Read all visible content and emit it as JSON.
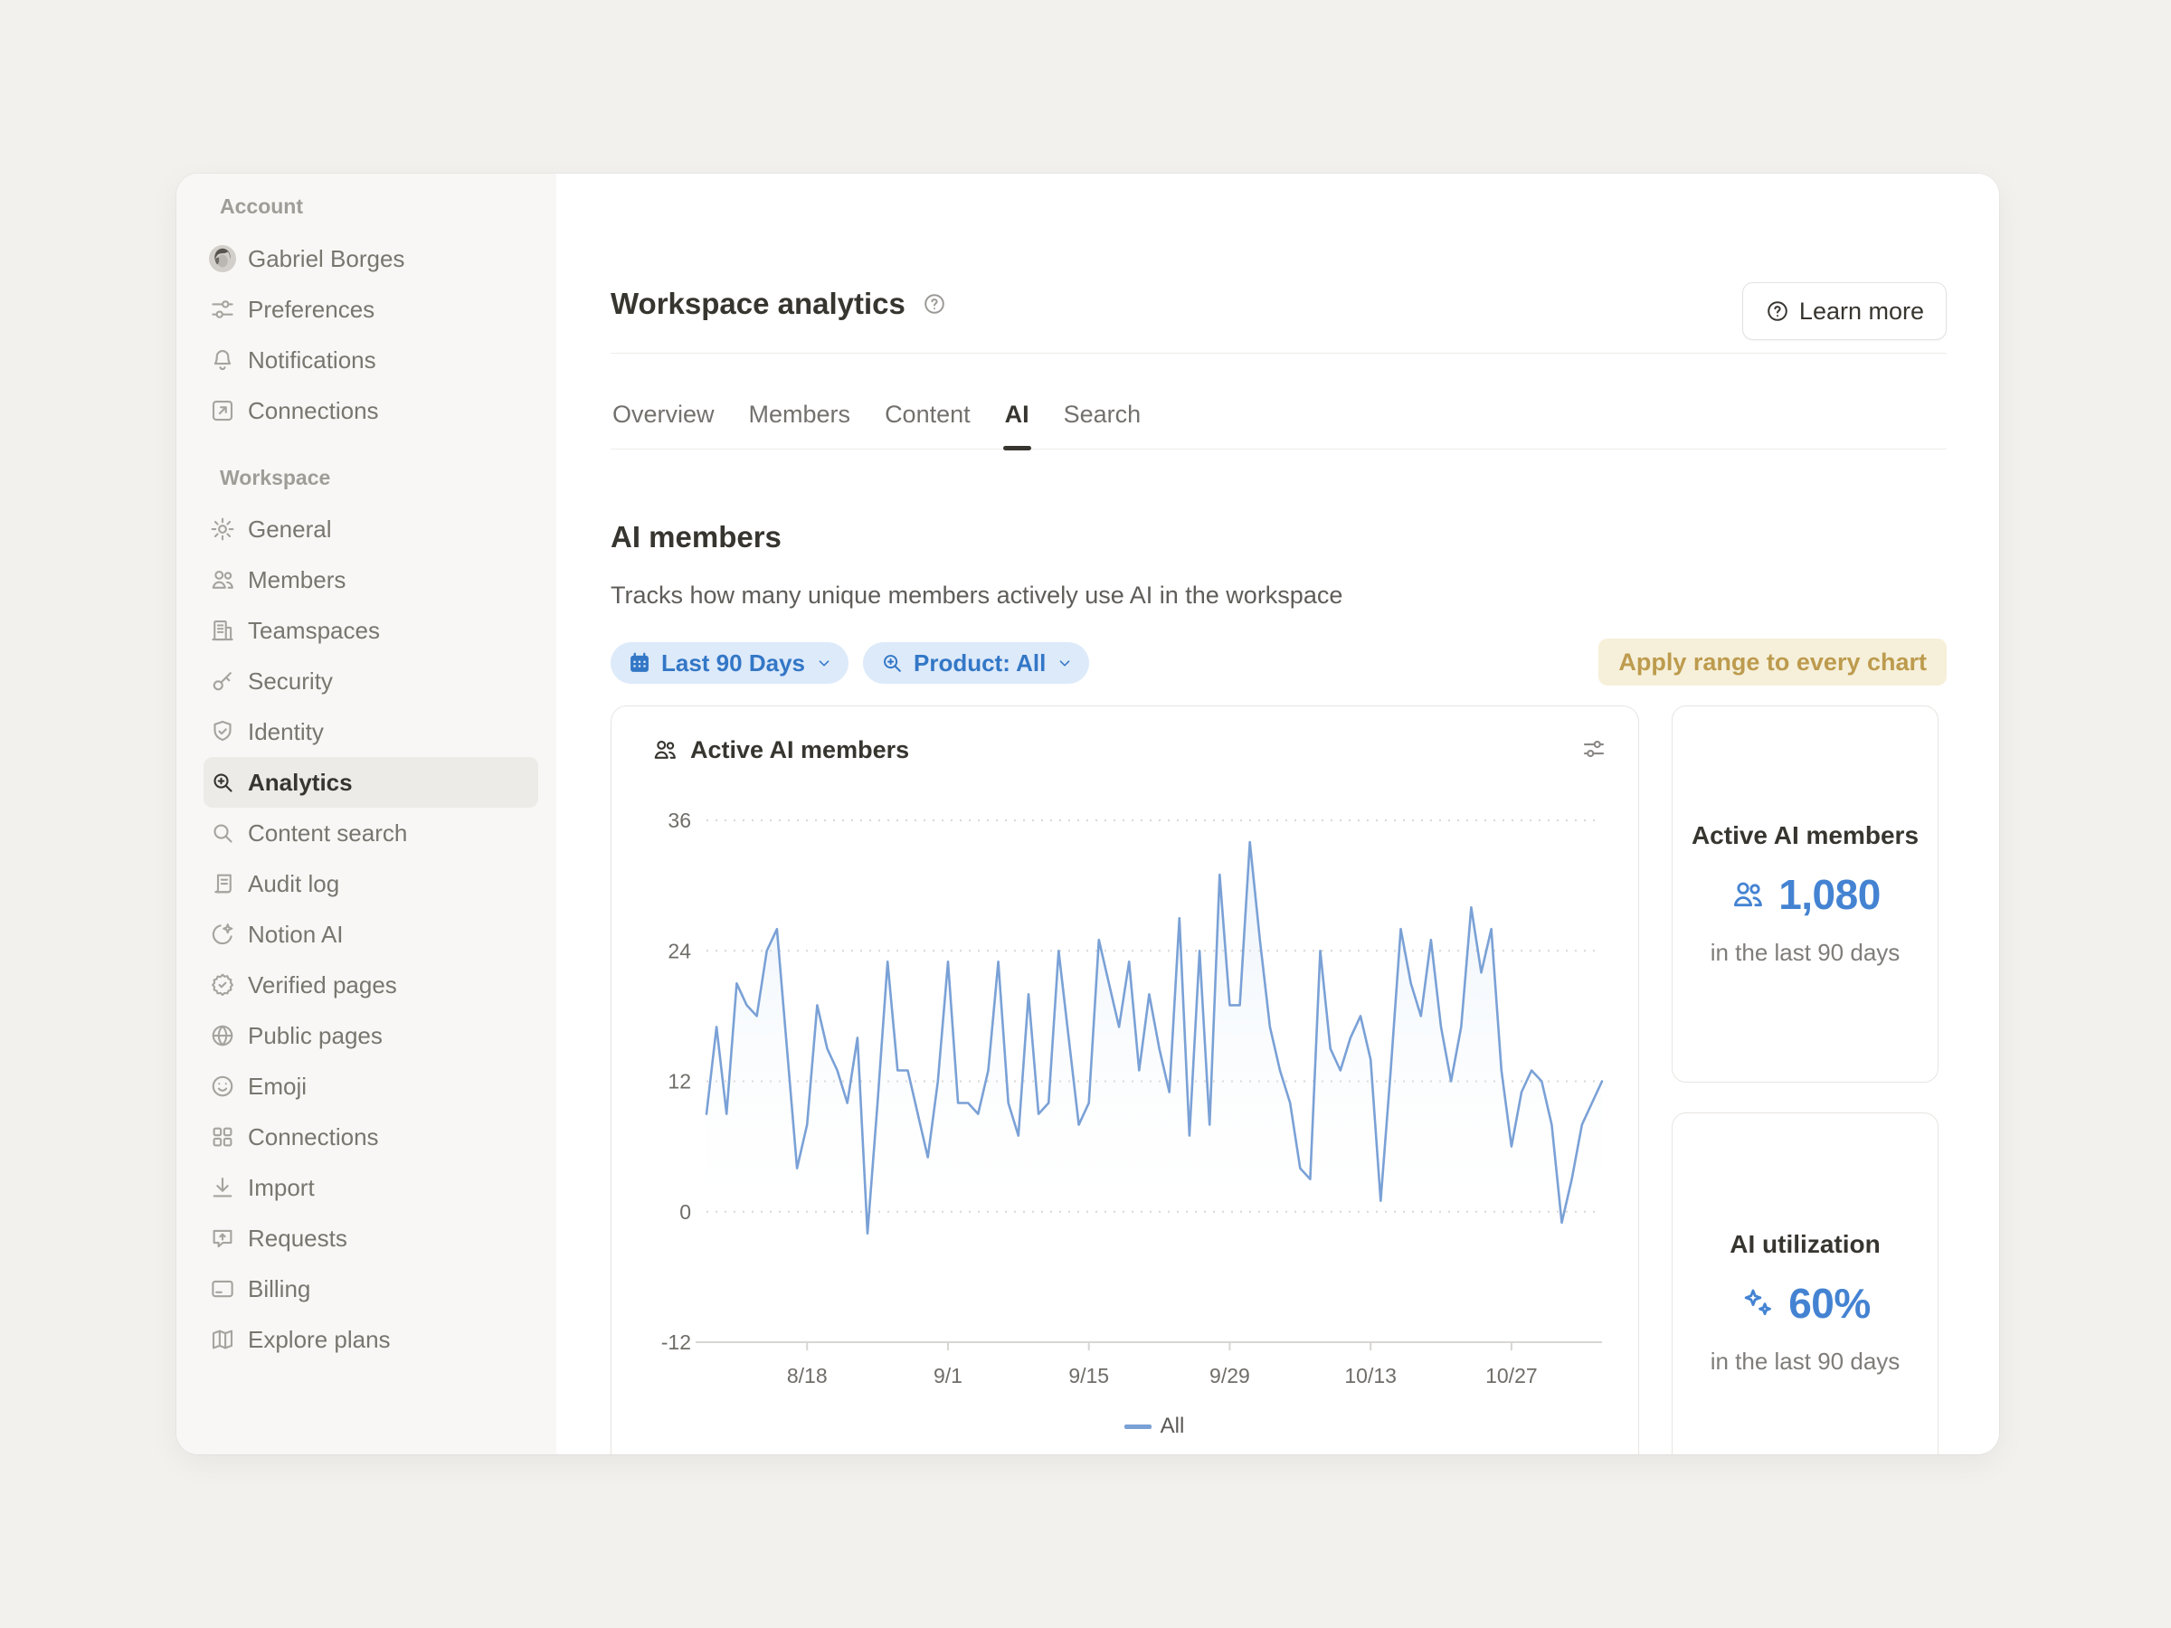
{
  "sidebar": {
    "account_section_label": "Account",
    "account_items": [
      {
        "label": "Gabriel Borges",
        "icon": "avatar"
      },
      {
        "label": "Preferences",
        "icon": "sliders-horizontal"
      },
      {
        "label": "Notifications",
        "icon": "bell"
      },
      {
        "label": "Connections",
        "icon": "arrow-up-right-box"
      }
    ],
    "workspace_section_label": "Workspace",
    "workspace_items": [
      {
        "label": "General",
        "icon": "gear"
      },
      {
        "label": "Members",
        "icon": "people"
      },
      {
        "label": "Teamspaces",
        "icon": "building"
      },
      {
        "label": "Security",
        "icon": "key"
      },
      {
        "label": "Identity",
        "icon": "shield-check"
      },
      {
        "label": "Analytics",
        "icon": "magnifier-plus",
        "active": true
      },
      {
        "label": "Content search",
        "icon": "magnifier"
      },
      {
        "label": "Audit log",
        "icon": "audit-log"
      },
      {
        "label": "Notion AI",
        "icon": "notion-ai"
      },
      {
        "label": "Verified pages",
        "icon": "verified-badge"
      },
      {
        "label": "Public pages",
        "icon": "globe"
      },
      {
        "label": "Emoji",
        "icon": "smiley"
      },
      {
        "label": "Connections",
        "icon": "grid"
      },
      {
        "label": "Import",
        "icon": "import-arrow"
      },
      {
        "label": "Requests",
        "icon": "message-up"
      },
      {
        "label": "Billing",
        "icon": "credit-card"
      },
      {
        "label": "Explore plans",
        "icon": "map"
      }
    ]
  },
  "header": {
    "title": "Workspace analytics",
    "help_icon": "question-circle",
    "learn_more": {
      "label": "Learn more",
      "icon": "question-circle"
    }
  },
  "tabs": [
    {
      "label": "Overview"
    },
    {
      "label": "Members"
    },
    {
      "label": "Content"
    },
    {
      "label": "AI",
      "active": true
    },
    {
      "label": "Search"
    }
  ],
  "ai_members_section": {
    "heading": "AI members",
    "description": "Tracks how many unique members actively use AI in the workspace"
  },
  "filters": {
    "date_range": {
      "label": "Last 90 Days",
      "icon": "calendar"
    },
    "product": {
      "label": "Product: All",
      "icon": "magnifier-plus"
    },
    "apply_button": {
      "label": "Apply range to every chart"
    }
  },
  "chart_card": {
    "title": "Active AI members",
    "title_icon": "people",
    "options_icon": "sliders"
  },
  "chart_data": {
    "type": "line",
    "title": "Active AI members",
    "x_start_date": "8/8",
    "days": 90,
    "x_tick_labels": [
      "8/18",
      "9/1",
      "9/15",
      "9/29",
      "10/13",
      "10/27"
    ],
    "x_tick_days": [
      10,
      24,
      38,
      52,
      66,
      80
    ],
    "y_ticks": [
      36,
      24,
      12,
      0,
      -12
    ],
    "ylim": [
      -12,
      36
    ],
    "grid": "dotted-horizontal",
    "legend_position": "bottom",
    "series": [
      {
        "name": "All",
        "color": "#7AA1D6",
        "values": [
          9,
          17,
          9,
          21,
          19,
          18,
          24,
          26,
          15,
          4,
          8,
          19,
          15,
          13,
          10,
          16,
          -2,
          10,
          23,
          13,
          13,
          9,
          5,
          12,
          23,
          10,
          10,
          9,
          13,
          23,
          10,
          7,
          20,
          9,
          10,
          24,
          16,
          8,
          10,
          25,
          21,
          17,
          23,
          13,
          20,
          15,
          11,
          27,
          7,
          24,
          8,
          31,
          19,
          19,
          34,
          25,
          17,
          13,
          10,
          4,
          3,
          24,
          15,
          13,
          16,
          18,
          14,
          1,
          13,
          26,
          21,
          18,
          25,
          17,
          12,
          17,
          28,
          22,
          26,
          13,
          6,
          11,
          13,
          12,
          8,
          -1,
          3,
          8,
          10,
          12
        ]
      }
    ]
  },
  "stat_cards": [
    {
      "title": "Active AI members",
      "icon": "people",
      "value": "1,080",
      "caption": "in the last 90 days"
    },
    {
      "title": "AI utilization",
      "icon": "sparkles",
      "value": "60%",
      "caption": "in the last 90 days"
    }
  ],
  "colors": {
    "accent_blue": "#3377C6",
    "chip_bg": "#DDEAFA",
    "stat_blue": "#4483D2",
    "line_blue": "#7AA1D6",
    "apply_bg": "#F6F0DA",
    "apply_text": "#BD9B4E",
    "active_text": "#37352F",
    "sidebar_bg": "#F8F7F5",
    "card_border": "#E7E5E2"
  }
}
